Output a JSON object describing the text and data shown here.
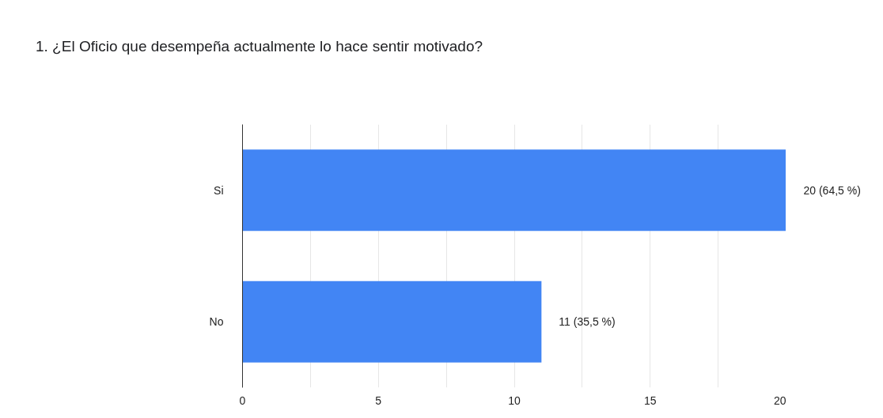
{
  "chart_data": {
    "type": "bar",
    "orientation": "horizontal",
    "title": "1. ¿El Oficio que desempeña actualmente lo hace sentir motivado?",
    "categories": [
      "Si",
      "No"
    ],
    "values": [
      20,
      11
    ],
    "color": "#4285f4",
    "value_labels": [
      "20 (64,5 %)",
      "11 (35,5 %)"
    ],
    "xlim": [
      0,
      20
    ],
    "xticks": [
      0,
      {
        "value": 2.5,
        "label": null
      },
      5,
      {
        "value": 7.5,
        "label": null
      },
      10,
      {
        "value": 12.5,
        "label": null
      },
      15,
      {
        "value": 17.5,
        "label": null
      },
      20
    ],
    "grid": "x"
  }
}
